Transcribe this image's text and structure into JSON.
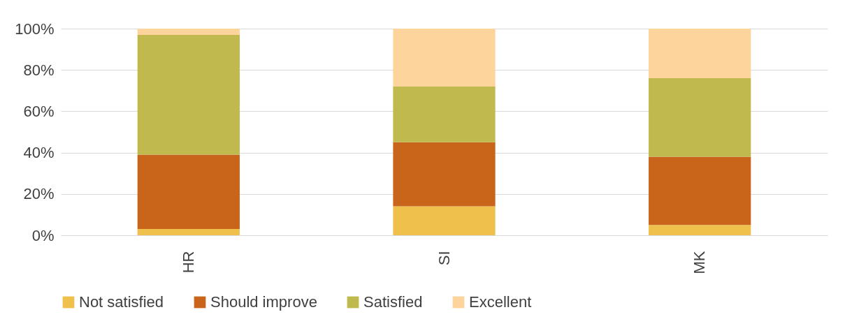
{
  "chart_data": {
    "type": "bar",
    "stacked": true,
    "categories": [
      "HR",
      "SI",
      "MK"
    ],
    "series": [
      {
        "name": "Not satisfied",
        "color": "#f0c04c",
        "values": [
          3,
          14,
          5
        ]
      },
      {
        "name": "Should improve",
        "color": "#c8651b",
        "values": [
          36,
          31,
          33
        ]
      },
      {
        "name": "Satisfied",
        "color": "#bfb94e",
        "values": [
          58,
          27,
          38
        ]
      },
      {
        "name": "Excellent",
        "color": "#fdd49b",
        "values": [
          3,
          28,
          24
        ]
      }
    ],
    "ylim": [
      0,
      100
    ],
    "yticks": [
      {
        "value": 0,
        "label": "0%"
      },
      {
        "value": 20,
        "label": "20%"
      },
      {
        "value": 40,
        "label": "40%"
      },
      {
        "value": 60,
        "label": "60%"
      },
      {
        "value": 80,
        "label": "80%"
      },
      {
        "value": 100,
        "label": "100%"
      }
    ],
    "grid": "y",
    "legend": "bottom"
  }
}
